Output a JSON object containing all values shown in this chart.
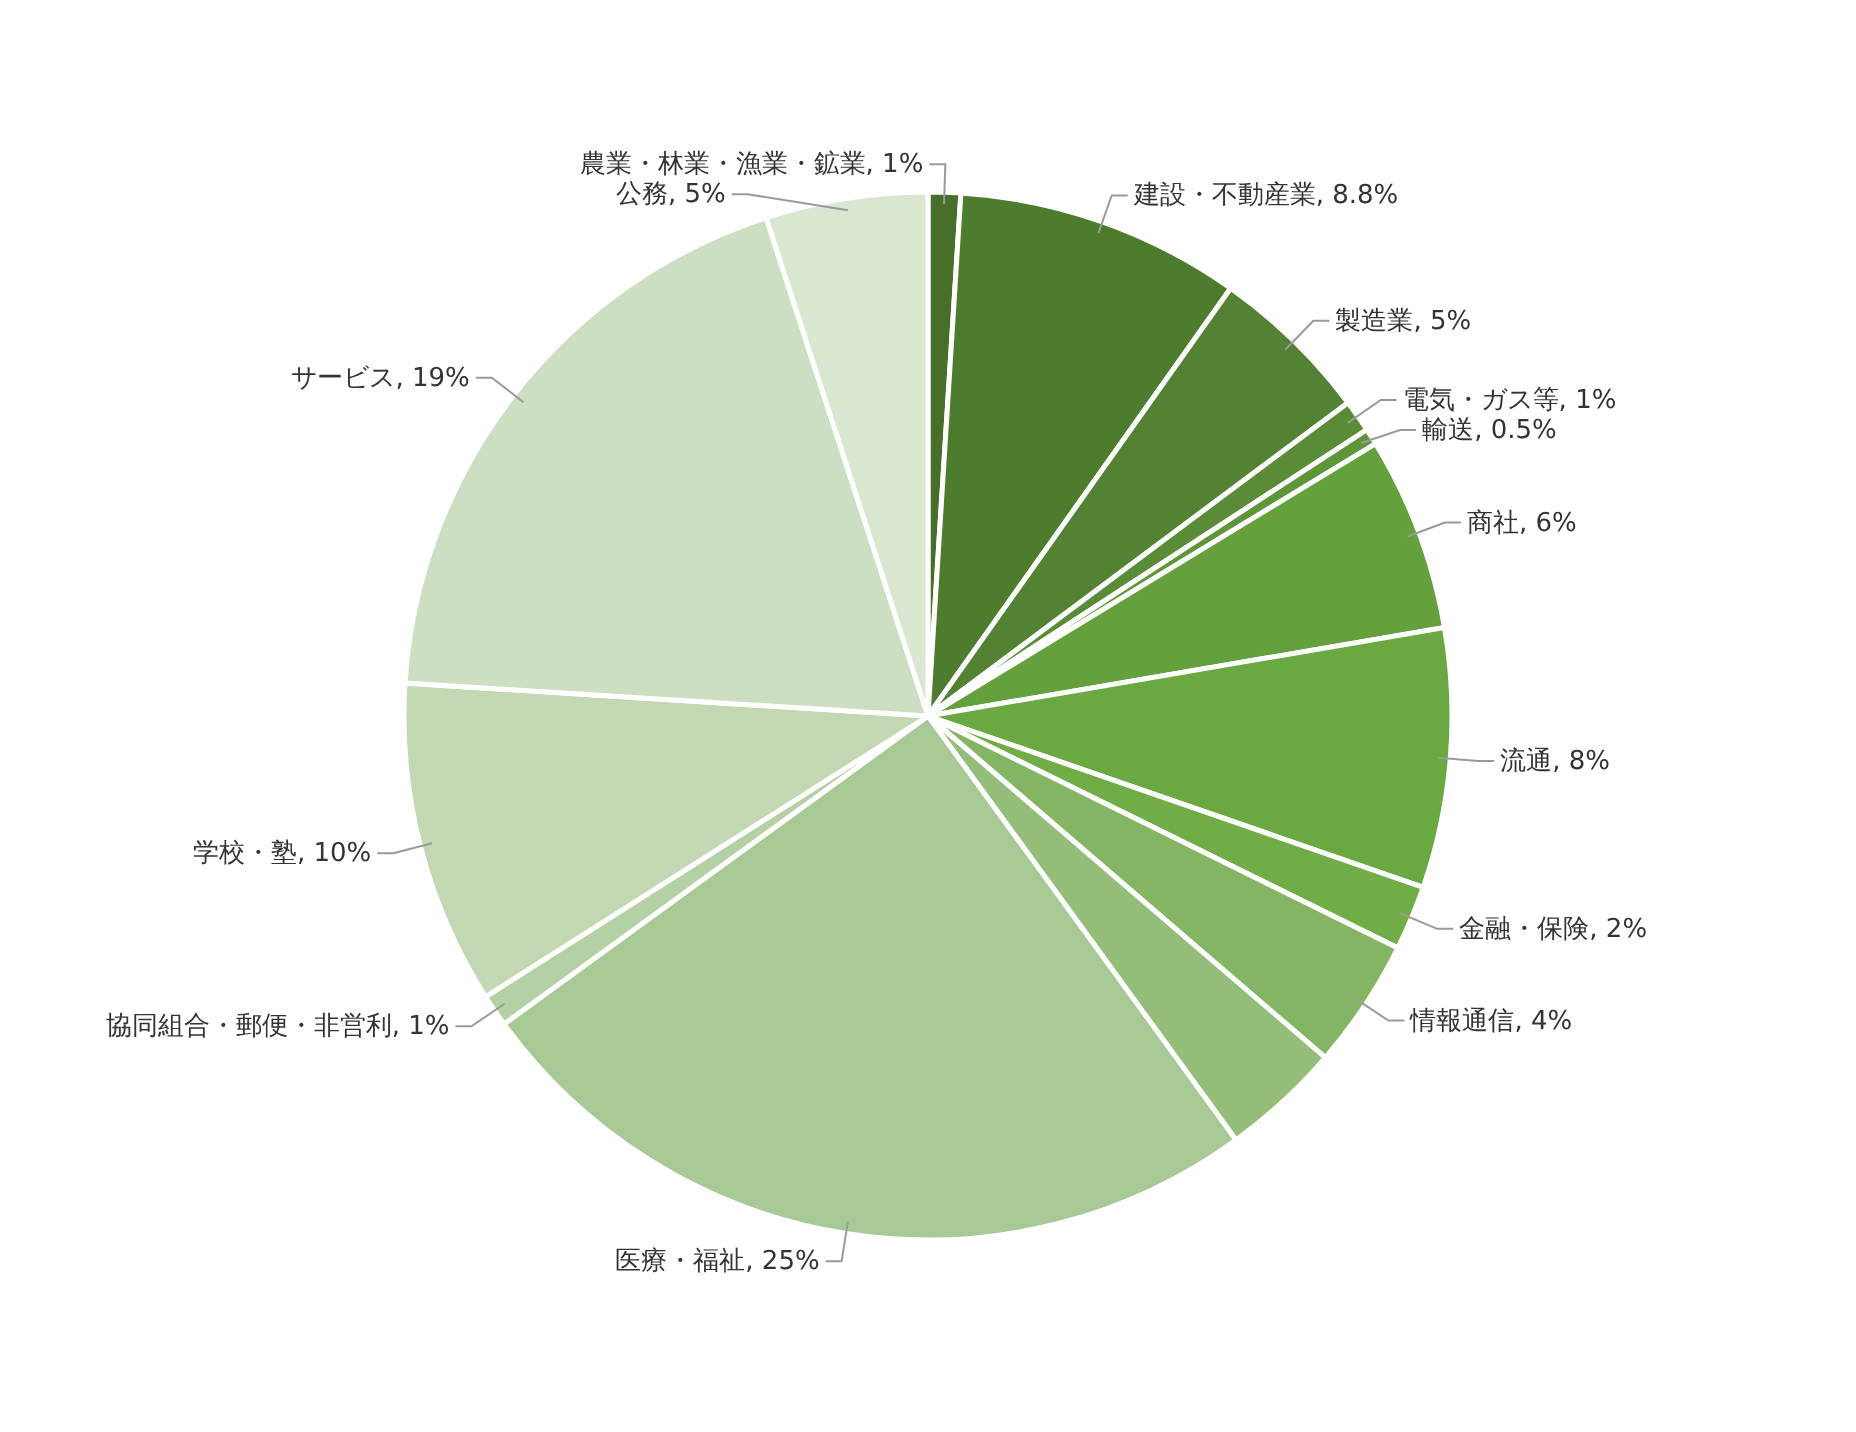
{
  "chart_data": {
    "type": "pie",
    "categories": [
      "農業・林業・漁業・鉱業",
      "建設・不動産業",
      "製造業",
      "電気・ガス等",
      "輸送",
      "商社",
      "流通",
      "金融・保険",
      "情報通信",
      null,
      "医療・福祉",
      "協同組合・郵便・非営利",
      "学校・塾",
      "サービス",
      "公務"
    ],
    "values": [
      1,
      8.8,
      5,
      1,
      0.5,
      6,
      8,
      2,
      4,
      3.7,
      25,
      1,
      10,
      19,
      5
    ],
    "value_labels": [
      "1%",
      "8.8%",
      "5%",
      "1%",
      "0.5%",
      "6%",
      "8%",
      "2%",
      "4%",
      null,
      "25%",
      "1%",
      "10%",
      "19%",
      "5%"
    ],
    "colors": [
      "#476f2a",
      "#4e7c2f",
      "#548235",
      "#5a8b37",
      "#5f9539",
      "#64a03c",
      "#6aa841",
      "#70ad47",
      "#84b564",
      "#93bd78",
      "#a7c995",
      "#b4d1a5",
      "#c1d8b3",
      "#cddfc3",
      "#d9e7d0"
    ]
  }
}
